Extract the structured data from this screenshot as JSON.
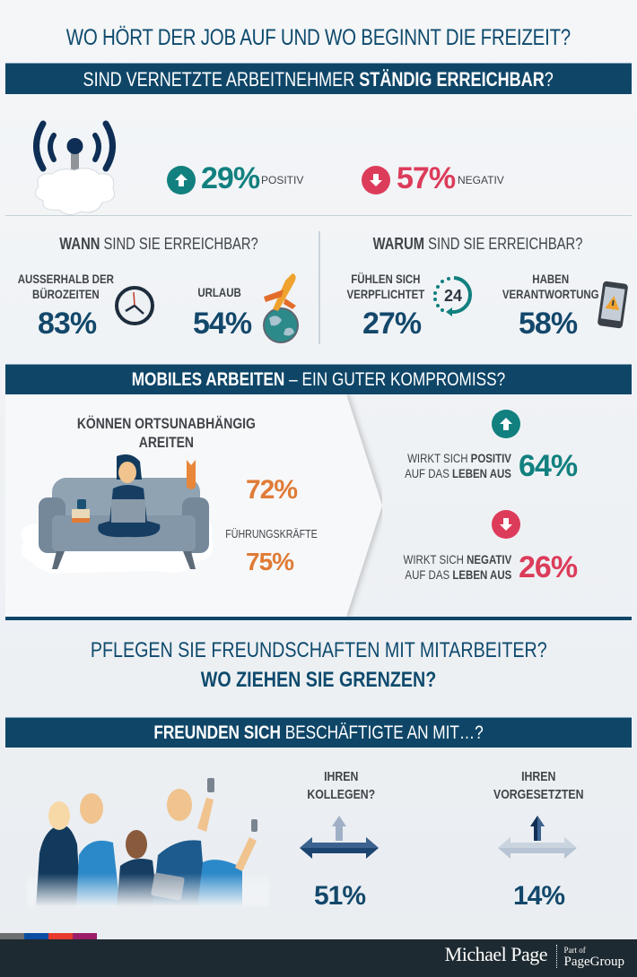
{
  "title": "WO HÖRT DER JOB AUF UND WO BEGINNT DIE FREIZEIT?",
  "section1": {
    "banner_regular": "SIND VERNETZTE ARBEITNEHMER ",
    "banner_bold": "STÄNDIG ERREICHBAR",
    "banner_end": "?",
    "positive": {
      "value": "29%",
      "label": "POSITIV",
      "icon": "arrow-up-circle-icon"
    },
    "negative": {
      "value": "57%",
      "label": "NEGATIV",
      "icon": "arrow-down-circle-icon"
    },
    "when": {
      "heading_bold": "WANN",
      "heading_rest": " SIND SIE ERREICHBAR?",
      "items": [
        {
          "label_line1": "AUSSERHALB DER",
          "label_line2": "BÜROZEITEN",
          "value": "83%",
          "icon": "clock-icon"
        },
        {
          "label_line1": "URLAUB",
          "label_line2": "",
          "value": "54%",
          "icon": "airplane-globe-icon"
        }
      ]
    },
    "why": {
      "heading_bold": "WARUM",
      "heading_rest": " SIND SIE ERREICHBAR?",
      "items": [
        {
          "label_line1": "FÜHLEN SICH",
          "label_line2": "VERPFLICHTET",
          "value": "27%",
          "icon": "24h-icon",
          "icon_text": "24"
        },
        {
          "label_line1": "HABEN",
          "label_line2": "VERANTWORTUNG",
          "value": "58%",
          "icon": "phone-warning-icon"
        }
      ]
    }
  },
  "section2": {
    "banner_bold": "MOBILES ARBEITEN",
    "banner_rest": " – EIN GUTER KOMPROMISS?",
    "remote": {
      "heading_line1": "KÖNNEN ORTSUNABHÄNGIG",
      "heading_line2": "AREITEN",
      "value": "72%",
      "managers_label": "FÜHRUNGSKRÄFTE",
      "managers_value": "75%"
    },
    "positive": {
      "line1_regular": "WIRKT SICH ",
      "line1_bold": "POSITIV",
      "line2_regular": "AUF DAS ",
      "line2_bold": "LEBEN AUS",
      "value": "64%"
    },
    "negative": {
      "line1_regular": "WIRKT SICH ",
      "line1_bold": "NEGATIV",
      "line2_regular": "AUF DAS ",
      "line2_bold": "LEBEN AUS",
      "value": "26%"
    }
  },
  "section3": {
    "question_line1": "PFLEGEN SIE FREUNDSCHAFTEN MIT MITARBEITER?",
    "question_line2": "WO ZIEHEN SIE GRENZEN?",
    "banner_bold": "FREUNDEN SICH",
    "banner_rest": " BESCHÄFTIGTE AN MIT…?",
    "items": [
      {
        "label_line1": "IHREN",
        "label_line2": "KOLLEGEN?",
        "value": "51%"
      },
      {
        "label_line1": "IHREN",
        "label_line2": "VORGESETZTEN",
        "value": "14%"
      }
    ]
  },
  "footer": {
    "brand": "Michael Page",
    "sub_small": "Part of",
    "sub_big": "PageGroup",
    "stripe_colors": [
      "#6d6e70",
      "#0b4ea2",
      "#e73a2d",
      "#9b1d68"
    ]
  },
  "colors": {
    "navy": "#0f4668",
    "teal": "#11807f",
    "red": "#dc3c5a",
    "orange": "#e07b36",
    "footer": "#1e2a31"
  }
}
